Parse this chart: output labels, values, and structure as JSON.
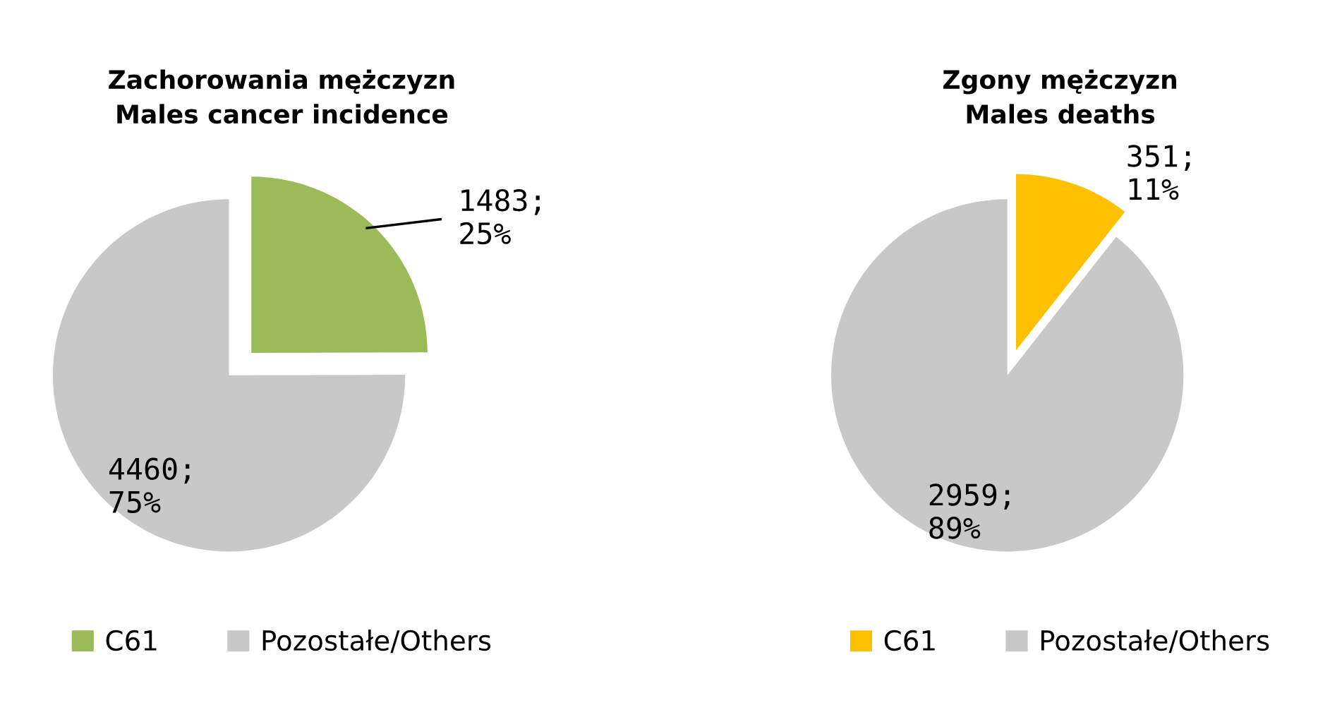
{
  "chart_data": [
    {
      "type": "pie",
      "title": "Zachorowania mężczyzn\nMales cancer incidence",
      "categories": [
        "C61",
        "Pozostałe/Others"
      ],
      "values": [
        1483,
        4460
      ],
      "colors": [
        "#9bbb59",
        "#c8c8c8"
      ],
      "value_labels": [
        "1483;\n25%",
        "4460;\n75%"
      ],
      "legend": "bottom"
    },
    {
      "type": "pie",
      "title": "Zgony mężczyzn\nMales deaths",
      "categories": [
        "C61",
        "Pozostałe/Others"
      ],
      "values": [
        351,
        2959
      ],
      "colors": [
        "#ffc000",
        "#c8c8c8"
      ],
      "value_labels": [
        "351;\n11%",
        "2959;\n89%"
      ],
      "legend": "bottom"
    }
  ]
}
